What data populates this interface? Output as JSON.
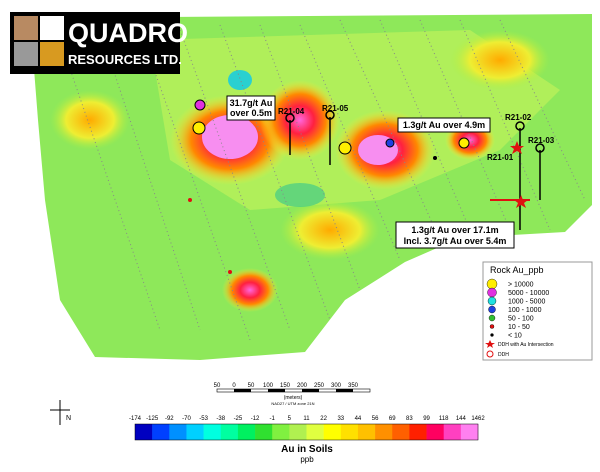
{
  "logo": {
    "name": "QUADRO",
    "sub": "RESOURCES LTD."
  },
  "holes": [
    {
      "label": "R21-04"
    },
    {
      "label": "R21-05"
    },
    {
      "label": "R21-02"
    },
    {
      "label": "R21-01"
    },
    {
      "label": "R21-03"
    }
  ],
  "callouts": {
    "a": [
      "31.7g/t Au",
      "over 0.5m"
    ],
    "b": [
      "1.3g/t Au over 4.9m"
    ],
    "c": [
      "1.3g/t Au over 17.1m",
      "Incl. 3.7g/t Au over 5.4m"
    ]
  },
  "legend": {
    "title": "Rock Au_ppb",
    "items": [
      "> 10000",
      "5000  -  10000",
      "1000  -  5000",
      "100  -  1000",
      "50  -  100",
      "10  -  50",
      "< 10"
    ],
    "ddh_au": "DDH with Au Intersection",
    "ddh": "DDH"
  },
  "scale": {
    "labels": [
      50,
      0,
      50,
      100,
      150,
      200,
      250,
      300,
      350
    ],
    "unit": "(meters)",
    "datum": "NAD27 / UTM zone 21N"
  },
  "north": "N",
  "colorbar": {
    "ticks": [
      -174,
      -125,
      -92,
      -70,
      -53,
      -38,
      -25,
      -12,
      -1,
      5,
      11,
      22,
      33,
      44,
      56,
      69,
      83,
      99,
      118,
      144,
      1462
    ],
    "title": "Au in Soils",
    "unit": "ppb"
  }
}
